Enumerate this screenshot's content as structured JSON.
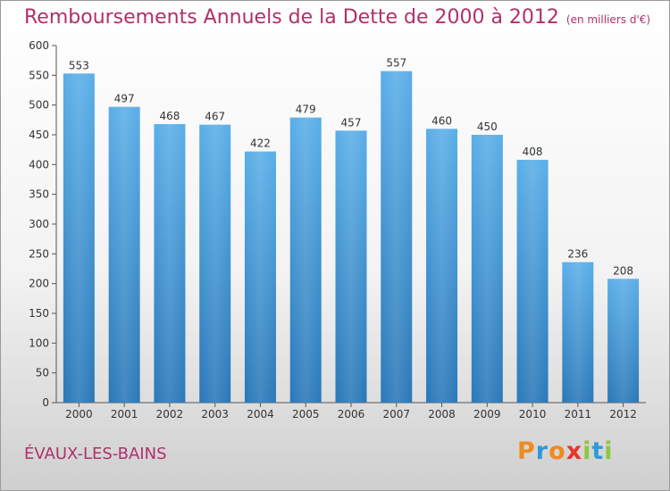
{
  "header": {
    "title": "Remboursements Annuels de la Dette de 2000 à 2012",
    "subtitle": "(en milliers d'€)"
  },
  "footer": {
    "city": "ÉVAUX-LES-BAINS",
    "brand": "Proxiti"
  },
  "colors": {
    "title": "#b0306a",
    "bar_top": "#5aaee8",
    "bar_bottom": "#2a78b8",
    "logo_letters": [
      "#f08a1c",
      "#2e9ad6",
      "#f08a1c",
      "#e8342a",
      "#8ec63f",
      "#2e9ad6",
      "#8ec63f"
    ]
  },
  "chart_data": {
    "type": "bar",
    "title": "Remboursements Annuels de la Dette de 2000 à 2012",
    "subtitle": "(en milliers d'€)",
    "xlabel": "",
    "ylabel": "",
    "ylim": [
      0,
      600
    ],
    "yticks": [
      0,
      50,
      100,
      150,
      200,
      250,
      300,
      350,
      400,
      450,
      500,
      550,
      600
    ],
    "grid": false,
    "categories": [
      "2000",
      "2001",
      "2002",
      "2003",
      "2004",
      "2005",
      "2006",
      "2007",
      "2008",
      "2009",
      "2010",
      "2011",
      "2012"
    ],
    "values": [
      553,
      497,
      468,
      467,
      422,
      479,
      457,
      557,
      460,
      450,
      408,
      236,
      208
    ],
    "data_labels": [
      "553",
      "497",
      "468",
      "467",
      "422",
      "479",
      "457",
      "557",
      "460",
      "450",
      "408",
      "236",
      "208"
    ]
  }
}
